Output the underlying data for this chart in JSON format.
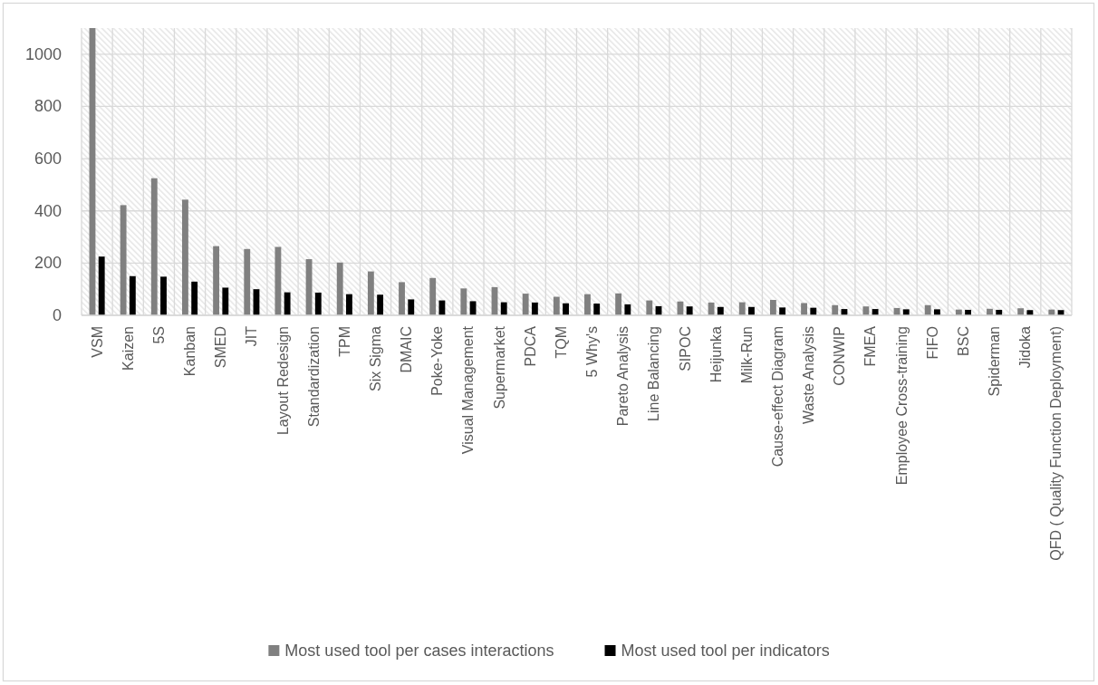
{
  "chart_data": {
    "type": "bar",
    "categories": [
      "VSM",
      "Kaizen",
      "5S",
      "Kanban",
      "SMED",
      "JIT",
      "Layout Redesign",
      "Standardization",
      "TPM",
      "Six Sigma",
      "DMAIC",
      "Poke-Yoke",
      "Visual Management",
      "Supermarket",
      "PDCA",
      "TQM",
      "5 Why's",
      "Pareto Analysis",
      "Line Balancing",
      "SIPOC",
      "Heijunka",
      "Milk-Run",
      "Cause-effect Diagram",
      "Waste Analysis",
      "CONWIP",
      "FMEA",
      "Employee Cross-training",
      "FIFO",
      "BSC",
      "Spiderman",
      "Jidoka",
      "QFD ( Quality Function Deployment)"
    ],
    "series": [
      {
        "name": "Most used tool per cases interactions",
        "color": "#808080",
        "values": [
          1100,
          422,
          525,
          443,
          265,
          254,
          262,
          215,
          202,
          168,
          127,
          143,
          103,
          108,
          83,
          71,
          81,
          84,
          57,
          53,
          49,
          50,
          59,
          47,
          39,
          34,
          28,
          39,
          22,
          25,
          27,
          22
        ]
      },
      {
        "name": "Most used tool per indicators",
        "color": "#000000",
        "values": [
          225,
          150,
          148,
          129,
          106,
          100,
          88,
          87,
          81,
          79,
          61,
          57,
          54,
          50,
          49,
          46,
          45,
          42,
          35,
          34,
          32,
          32,
          30,
          29,
          24,
          24,
          23,
          23,
          21,
          21,
          20,
          20
        ]
      }
    ],
    "ylim": [
      0,
      1100
    ],
    "yticks": [
      0,
      200,
      400,
      600,
      800,
      1000
    ],
    "grid": true,
    "legend": "bottom"
  }
}
